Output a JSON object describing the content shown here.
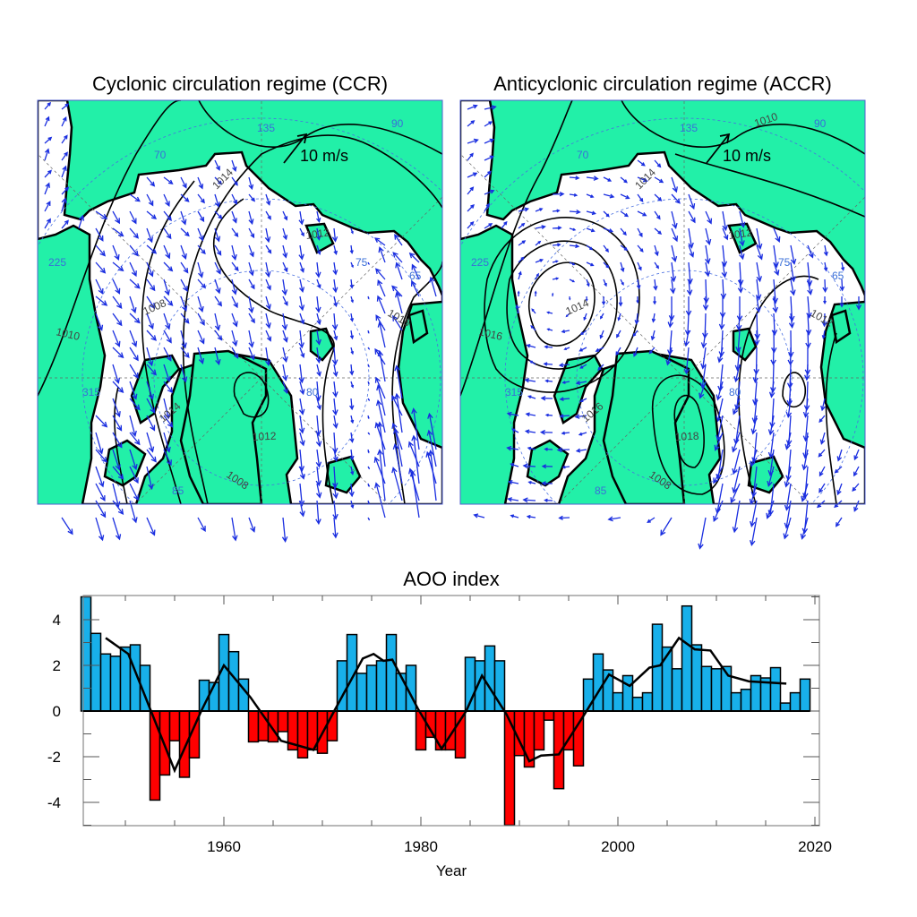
{
  "maps": [
    {
      "title": "Cyclonic circulation regime (CCR)",
      "scale_label": "10 m/s",
      "contour_labels": [
        "1014",
        "1012",
        "1016",
        "1008",
        "1010",
        "1014",
        "1012",
        "1008"
      ],
      "lat_lon_labels": [
        "70",
        "135",
        "90",
        "65",
        "75",
        "225",
        "80",
        "85",
        "315"
      ]
    },
    {
      "title": "Anticyclonic circulation regime (ACCR)",
      "scale_label": "10 m/s",
      "contour_labels": [
        "1014",
        "1012",
        "1012",
        "1014",
        "1016",
        "1016",
        "1018",
        "1008",
        "1010"
      ],
      "lat_lon_labels": [
        "70",
        "135",
        "90",
        "65",
        "75",
        "225",
        "80",
        "85",
        "315"
      ]
    }
  ],
  "colors": {
    "land": "#22f0a8",
    "wind_arrow": "#1a2ee0",
    "positive_bar": "#18b0ea",
    "negative_bar": "#ff0000",
    "smoothed_line": "#000000"
  },
  "chart_data": {
    "type": "bar",
    "title": "AOO index",
    "xlabel": "Year",
    "ylabel": "",
    "xlim": [
      1945.8,
      2020.5
    ],
    "ylim": [
      -5,
      5
    ],
    "x_ticks": [
      1960,
      1980,
      2000,
      2020
    ],
    "y_ticks": [
      -4,
      -2,
      0,
      2,
      4
    ],
    "grid": false,
    "categories": [
      1946,
      1947,
      1948,
      1949,
      1950,
      1951,
      1952,
      1953,
      1954,
      1955,
      1956,
      1957,
      1958,
      1959,
      1960,
      1961,
      1962,
      1963,
      1964,
      1965,
      1966,
      1967,
      1968,
      1969,
      1970,
      1971,
      1972,
      1973,
      1974,
      1975,
      1976,
      1977,
      1978,
      1979,
      1980,
      1981,
      1982,
      1983,
      1984,
      1985,
      1986,
      1987,
      1988,
      1989,
      1990,
      1991,
      1992,
      1993,
      1994,
      1995,
      1996,
      1997,
      1998,
      1999,
      2000,
      2001,
      2002,
      2003,
      2004,
      2005,
      2006,
      2007,
      2008,
      2009,
      2010,
      2011,
      2012,
      2013,
      2014,
      2015,
      2016,
      2017,
      2018,
      2019
    ],
    "values": [
      5.0,
      3.4,
      2.5,
      2.4,
      2.8,
      2.9,
      2.0,
      -3.9,
      -2.8,
      -1.3,
      -2.9,
      -2.05,
      1.35,
      1.25,
      3.35,
      2.6,
      1.4,
      -1.35,
      -1.3,
      -1.35,
      -0.9,
      -1.7,
      -2.05,
      -1.7,
      -1.85,
      -1.3,
      2.2,
      3.35,
      1.65,
      2.0,
      2.2,
      3.35,
      1.65,
      2.0,
      -1.7,
      -1.15,
      -1.7,
      -1.7,
      -2.05,
      2.35,
      2.2,
      2.85,
      2.2,
      -5.0,
      -1.95,
      -2.45,
      -1.7,
      -0.4,
      -3.4,
      -1.7,
      -2.4,
      1.4,
      2.5,
      1.8,
      0.8,
      1.55,
      0.6,
      0.8,
      3.8,
      2.8,
      1.85,
      4.6,
      2.9,
      1.95,
      1.85,
      1.95,
      0.8,
      0.95,
      1.55,
      1.45,
      1.9,
      0.35,
      0.8,
      1.4
    ],
    "smoothed": [
      [
        1948,
        3.2
      ],
      [
        1950.3,
        2.5
      ],
      [
        1952.6,
        0
      ],
      [
        1955,
        -2.6
      ],
      [
        1957.7,
        0
      ],
      [
        1960,
        2.0
      ],
      [
        1962.7,
        0.6
      ],
      [
        1965.8,
        -1.3
      ],
      [
        1969.1,
        -1.7
      ],
      [
        1971.2,
        0
      ],
      [
        1974.1,
        2.3
      ],
      [
        1975.2,
        2.5
      ],
      [
        1976.2,
        2.2
      ],
      [
        1977.1,
        2.25
      ],
      [
        1979.7,
        0.1
      ],
      [
        1982.1,
        -1.65
      ],
      [
        1984.6,
        0
      ],
      [
        1986.2,
        1.55
      ],
      [
        1988.7,
        -0.15
      ],
      [
        1991,
        -2.2
      ],
      [
        1992.2,
        -1.95
      ],
      [
        1994,
        -1.9
      ],
      [
        1996.6,
        -0.15
      ],
      [
        1999.1,
        1.6
      ],
      [
        2001.2,
        1.1
      ],
      [
        2003.2,
        1.9
      ],
      [
        2004.3,
        2.0
      ],
      [
        2006.2,
        3.2
      ],
      [
        2007.8,
        2.7
      ],
      [
        2009.4,
        2.65
      ],
      [
        2011.2,
        1.55
      ],
      [
        2013.3,
        1.3
      ],
      [
        2017.1,
        1.2
      ]
    ]
  }
}
